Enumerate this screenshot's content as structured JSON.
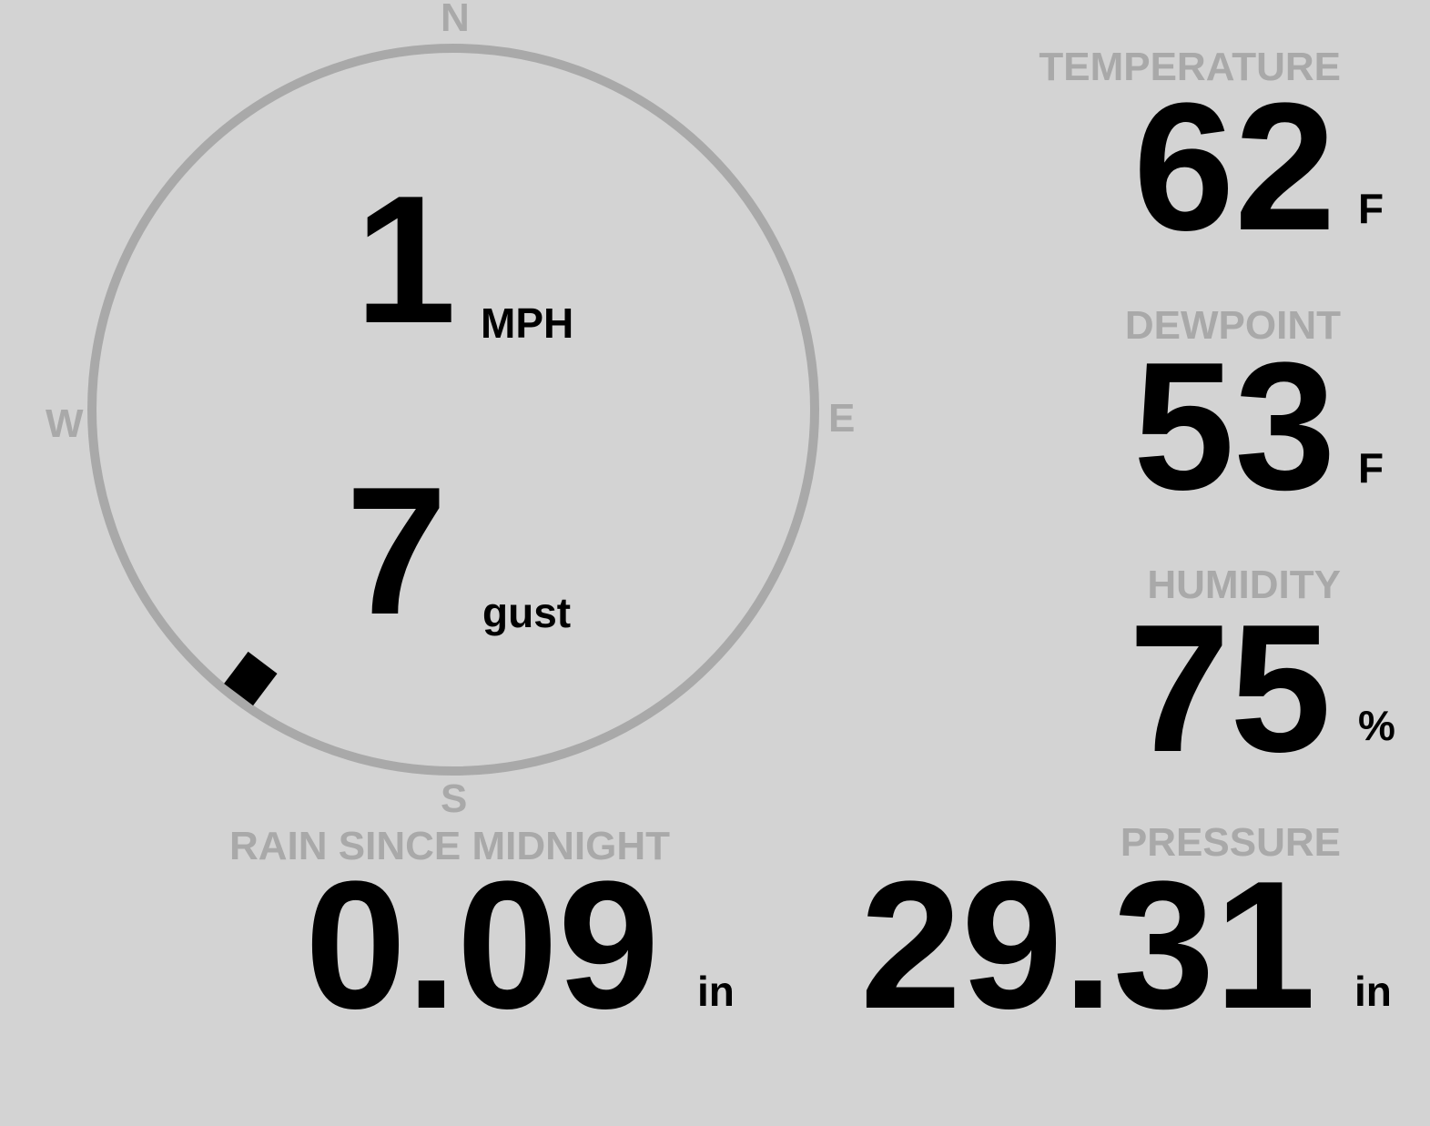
{
  "wind": {
    "speed": "1",
    "speed_unit": "MPH",
    "gust": "7",
    "gust_unit": "gust",
    "direction_deg": 217,
    "compass": {
      "n": "N",
      "e": "E",
      "s": "S",
      "w": "W"
    }
  },
  "temperature": {
    "label": "TEMPERATURE",
    "value": "62",
    "unit": "F"
  },
  "dewpoint": {
    "label": "DEWPOINT",
    "value": "53",
    "unit": "F"
  },
  "humidity": {
    "label": "HUMIDITY",
    "value": "75",
    "unit": "%"
  },
  "rain": {
    "label": "RAIN SINCE MIDNIGHT",
    "value": "0.09",
    "unit": "in"
  },
  "pressure": {
    "label": "PRESSURE",
    "value": "29.31",
    "unit": "in"
  },
  "colors": {
    "background": "#d3d3d3",
    "muted": "#a9a9a9",
    "value": "#000000"
  }
}
